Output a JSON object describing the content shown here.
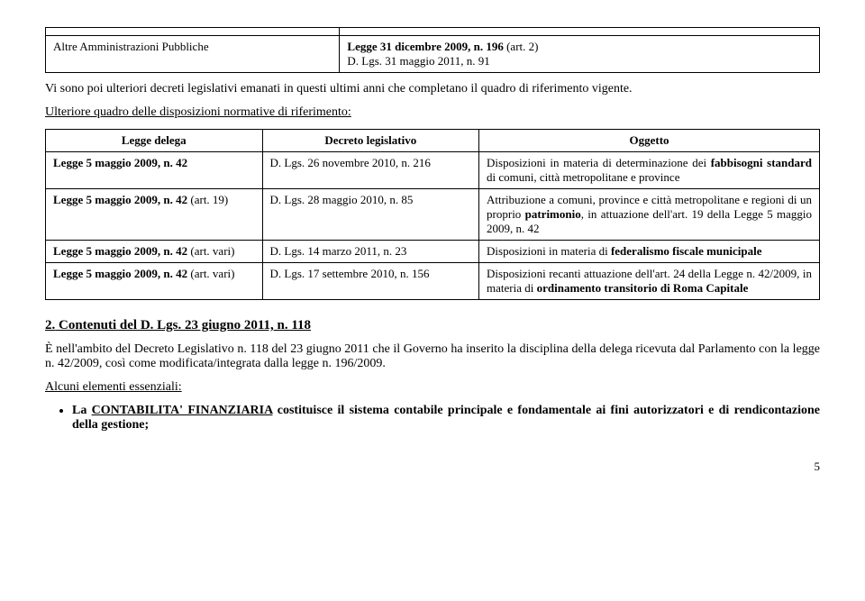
{
  "table1": {
    "rows": [
      {
        "left": "",
        "right": ""
      },
      {
        "left": "Altre Amministrazioni Pubbliche",
        "right_parts": [
          {
            "bold": true,
            "text": "Legge 31 dicembre 2009, n. 196"
          },
          {
            "bold": false,
            "text": " (art. 2)"
          },
          {
            "br": true
          },
          {
            "bold": false,
            "text": "D. Lgs. 31 maggio 2011, n. 91"
          }
        ]
      }
    ]
  },
  "para1": "Vi sono poi ulteriori decreti legislativi emanati in questi ultimi anni che completano il quadro di riferimento vigente.",
  "para2": "Ulteriore quadro delle disposizioni normative di riferimento:",
  "table2": {
    "headers": [
      "Legge delega",
      "Decreto legislativo",
      "Oggetto"
    ],
    "rows": [
      {
        "c1_bold": "Legge 5 maggio 2009, n. 42",
        "c2": "D. Lgs. 26 novembre 2010, n. 216",
        "c3_segments": [
          {
            "t": "Disposizioni in materia di determinazione dei "
          },
          {
            "t": "fabbisogni standard",
            "b": true
          },
          {
            "t": " di comuni, città metropolitane e province"
          }
        ]
      },
      {
        "c1_bold": "Legge 5 maggio 2009, n. 42",
        "c1_tail": " (art. 19)",
        "c2": "D. Lgs. 28 maggio 2010, n. 85",
        "c3_segments": [
          {
            "t": "Attribuzione a comuni, province e città metropolitane e regioni di un proprio "
          },
          {
            "t": "patrimonio",
            "b": true
          },
          {
            "t": ", in attuazione dell'art. 19 della Legge 5 maggio 2009, n. 42"
          }
        ]
      },
      {
        "c1_bold": "Legge 5 maggio 2009, n. 42",
        "c1_tail": " (art. vari)",
        "c2": "D. Lgs. 14 marzo 2011, n. 23",
        "c3_segments": [
          {
            "t": "Disposizioni in materia di "
          },
          {
            "t": "federalismo fiscale municipale",
            "b": true
          }
        ]
      },
      {
        "c1_bold": "Legge 5 maggio 2009, n. 42",
        "c1_tail": " (art. vari)",
        "c2": "D. Lgs. 17 settembre 2010, n. 156",
        "c3_segments": [
          {
            "t": "Disposizioni recanti attuazione dell'art. 24 della Legge n. 42/2009, in materia di "
          },
          {
            "t": "ordinamento transitorio di Roma Capitale",
            "b": true
          }
        ]
      }
    ]
  },
  "section2": {
    "num": "2.",
    "title": "Contenuti del D. Lgs. 23 giugno 2011, n. 118"
  },
  "para3": "È nell'ambito del Decreto Legislativo n. 118 del 23 giugno 2011 che il Governo ha inserito la disciplina della delega ricevuta dal Parlamento con la legge n. 42/2009, così come modificata/integrata dalla legge n. 196/2009.",
  "para4": "Alcuni elementi essenziali:",
  "bullet1_segments": [
    {
      "t": "La ",
      "b": true
    },
    {
      "t": "CONTABILITA' FINANZIARIA",
      "b": true,
      "u": true
    },
    {
      "t": " costituisce il sistema contabile principale e fondamentale ai fini autorizzatori e di rendicontazione della gestione;",
      "b": true
    }
  ],
  "pagenum": "5"
}
